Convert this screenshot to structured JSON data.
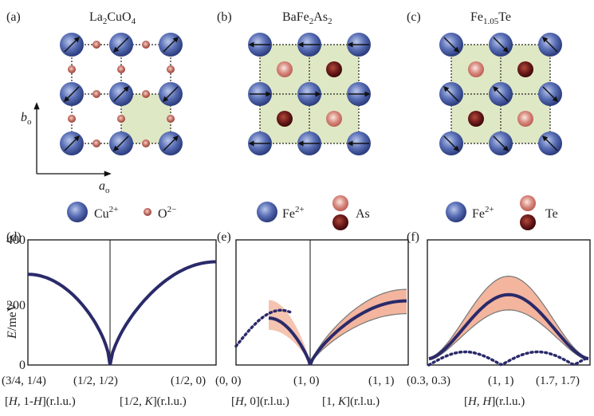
{
  "top": {
    "panels": [
      {
        "id": "a",
        "letter": "(a)",
        "formula_main": "La",
        "formula_sub1": "2",
        "formula_mid": "CuO",
        "formula_sub2": "4"
      },
      {
        "id": "b",
        "letter": "(b)",
        "formula_main": "BaFe",
        "formula_sub1": "2",
        "formula_mid": "As",
        "formula_sub2": "2"
      },
      {
        "id": "c",
        "letter": "(c)",
        "formula_main": "Fe",
        "formula_sub1": "1.05",
        "formula_mid": "Te",
        "formula_sub2": ""
      }
    ],
    "axes": {
      "b_label": "b",
      "b_sub": "o",
      "a_label": "a",
      "a_sub": "o"
    },
    "legend_a": {
      "ion1": "Cu",
      "ion1_charge": "2+",
      "ion2": "O",
      "ion2_charge": "2−"
    },
    "legend_b": {
      "ion1": "Fe",
      "ion1_charge": "2+",
      "ion2": "As"
    },
    "legend_c": {
      "ion1": "Fe",
      "ion1_charge": "2+",
      "ion2": "Te"
    }
  },
  "bottom": {
    "panels": [
      {
        "id": "d",
        "letter": "(d)"
      },
      {
        "id": "e",
        "letter": "(e)"
      },
      {
        "id": "f",
        "letter": "(f)"
      }
    ],
    "y_axis_label": "E/meV",
    "y_ticks": [
      "400",
      "200",
      "0"
    ],
    "d_ticks": [
      "(3/4, 1/4)",
      "(1/2, 1/2)",
      "(1/2, 0)"
    ],
    "d_caption_left": "[H, 1-H](r.l.u.)",
    "d_caption_right": "[1/2, K](r.l.u.)",
    "e_ticks": [
      "(0, 0)",
      "(1, 0)",
      "(1, 1)"
    ],
    "e_caption_left": "[H, 0](r.l.u.)",
    "e_caption_right": "[1, K](r.l.u.)",
    "f_ticks": [
      "(0.3, 0.3)",
      "(1, 1)",
      "(1.7, 1.7)"
    ],
    "f_caption": "[H, H](r.l.u.)"
  },
  "colors": {
    "fe_cu_ion": "#4a5fa8",
    "anion_light": "#c8675f",
    "anion_dark": "#6b1a1a",
    "plaquette": "#dfe8c4",
    "dispersion": "#2a2a6a",
    "band_fill": "#f3b59e",
    "band_edge": "#777777"
  },
  "chart_data": [
    {
      "type": "line",
      "panel": "d",
      "ylim": [
        0,
        400
      ],
      "x_tick_labels": [
        "(3/4, 1/4)",
        "(1/2, 1/2)",
        "(1/2, 0)"
      ],
      "series": [
        {
          "x": [
            0,
            0.1,
            0.2,
            0.3,
            0.4,
            0.5,
            0.6,
            0.7,
            0.8,
            0.9,
            1.0
          ],
          "y": [
            288,
            282,
            262,
            225,
            160,
            0,
            190,
            262,
            300,
            320,
            330
          ]
        }
      ]
    },
    {
      "type": "area",
      "panel": "e",
      "ylim": [
        0,
        400
      ],
      "x_tick_labels": [
        "(0, 0)",
        "(1, 0)",
        "(1, 1)"
      ],
      "series": [
        {
          "x": [
            0,
            0.1,
            0.2,
            0.3,
            0.4,
            0.5,
            0.6,
            0.7,
            0.8,
            0.9,
            1.0
          ],
          "y": [
            60,
            130,
            170,
            150,
            90,
            0,
            80,
            140,
            175,
            195,
            205
          ]
        }
      ]
    },
    {
      "type": "area",
      "panel": "f",
      "ylim": [
        0,
        400
      ],
      "x_tick_labels": [
        "(0.3, 0.3)",
        "(1, 1)",
        "(1.7, 1.7)"
      ],
      "series": [
        {
          "x": [
            0,
            0.1,
            0.2,
            0.3,
            0.4,
            0.5,
            0.6,
            0.7,
            0.8,
            0.9,
            1.0
          ],
          "y": [
            20,
            40,
            90,
            160,
            210,
            225,
            210,
            160,
            90,
            40,
            20
          ]
        },
        {
          "x": [
            0,
            0.1,
            0.2,
            0.3,
            0.4,
            0.5,
            0.6,
            0.7,
            0.8,
            0.9,
            1.0
          ],
          "y": [
            20,
            10,
            5,
            35,
            45,
            10,
            45,
            35,
            5,
            10,
            20
          ]
        }
      ]
    }
  ]
}
